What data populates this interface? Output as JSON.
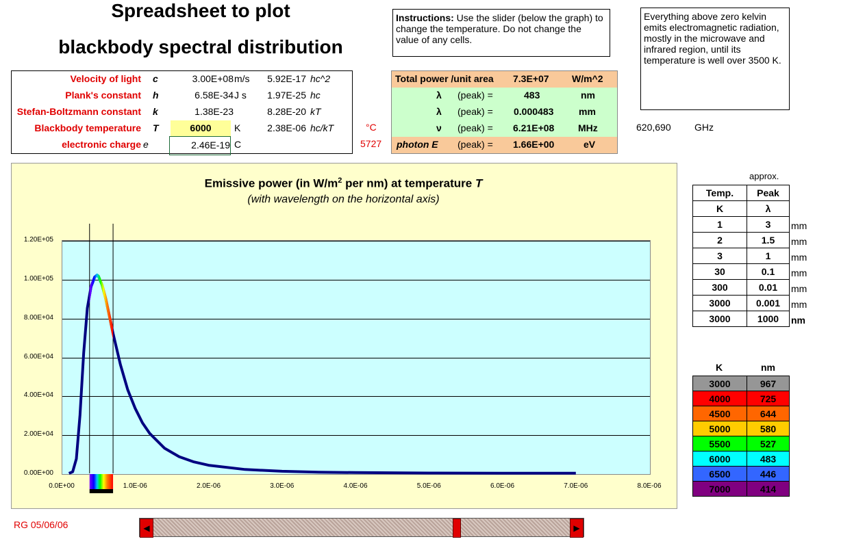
{
  "title_line1": "Spreadsheet to plot",
  "title_line2": "blackbody spectral distribution",
  "instructions_label": "Instructions:",
  "instructions_text": " Use the slider (below the graph) to change the temperature. Do not change the value of any cells.",
  "info_text": "Everything above zero kelvin emits electromagnetic radiation, mostly in the microwave and infrared region, until its temperature is well over 3500 K.",
  "constants": [
    {
      "label": "Velocity of light",
      "symbol": "c",
      "value": "3.00E+08",
      "unit": "m/s",
      "value2": "5.92E-17",
      "expr": "hc^2"
    },
    {
      "label": "Plank's constant",
      "symbol": "h",
      "value": "6.58E-34",
      "unit": "J s",
      "value2": "1.97E-25",
      "expr": "hc"
    },
    {
      "label": "Stefan-Boltzmann constant",
      "symbol": "k",
      "value": "1.38E-23",
      "unit": "",
      "value2": "8.28E-20",
      "expr": "kT"
    },
    {
      "label": "Blackbody temperature",
      "symbol": "T",
      "value": "6000",
      "unit": "K",
      "value2": "2.38E-06",
      "expr": "hc/kT"
    },
    {
      "label": "electronic charge",
      "symbol": "e",
      "value": "2.46E-19",
      "unit": "C",
      "value2": "",
      "expr": ""
    }
  ],
  "celsius_unit": "°C",
  "celsius_value": "5727",
  "results": {
    "total_power_label": "Total power /unit area",
    "total_power_value": "7.3E+07",
    "total_power_unit": "W/m^2",
    "peak_word": "(peak)  =",
    "lambda_symbol": "λ",
    "nu_symbol": "ν",
    "lambda_nm_value": "483",
    "lambda_nm_unit": "nm",
    "lambda_mm_value": "0.000483",
    "lambda_mm_unit": "mm",
    "nu_value": "6.21E+08",
    "nu_unit": "MHz",
    "photon_label": "photon E",
    "photon_value": "1.66E+00",
    "photon_unit": "eV"
  },
  "ghz_value": "620,690",
  "ghz_unit": "GHz",
  "chart_data": {
    "type": "line",
    "title": "Emissive power (in W/m",
    "title_sup": "2",
    "title_rest": " per nm) at temperature ",
    "title_T": "T",
    "subtitle": "(with wavelength on the horizontal axis)",
    "ylim": [
      0,
      120000
    ],
    "xlim": [
      0,
      8e-06
    ],
    "yticks": [
      "0.00E+00",
      "2.00E+04",
      "4.00E+04",
      "6.00E+04",
      "8.00E+04",
      "1.00E+05",
      "1.20E+05"
    ],
    "xticks": [
      "0.0E+00",
      "1.0E-06",
      "2.0E-06",
      "3.0E-06",
      "4.0E-06",
      "5.0E-06",
      "6.0E-06",
      "7.0E-06",
      "8.0E-06"
    ],
    "grid": true,
    "series_color": "#000080",
    "visible_band_nm": [
      380,
      700
    ],
    "x": [
      1e-07,
      1.5e-07,
      2e-07,
      2.5e-07,
      3e-07,
      3.5e-07,
      4e-07,
      4.5e-07,
      4.83e-07,
      5e-07,
      5.5e-07,
      6e-07,
      6.5e-07,
      7e-07,
      8e-07,
      9e-07,
      1e-06,
      1.1e-06,
      1.2e-06,
      1.4e-06,
      1.6e-06,
      1.8e-06,
      2e-06,
      2.5e-06,
      3e-06,
      3.5e-06,
      4e-06,
      5e-06,
      6e-06,
      7e-06
    ],
    "values": [
      0,
      800,
      7500,
      30000,
      62000,
      85000,
      96000,
      101000,
      102000,
      101500,
      97000,
      90000,
      81000,
      72000,
      56000,
      43000,
      33500,
      26000,
      20500,
      13000,
      8600,
      5900,
      4200,
      2000,
      1100,
      650,
      420,
      190,
      100,
      60
    ]
  },
  "approx_label": "approx.",
  "peak_table": {
    "header1": [
      "Temp.",
      "Peak"
    ],
    "header2": [
      "K",
      "λ"
    ],
    "rows": [
      {
        "temp": "1",
        "peak": "3",
        "unit": "mm"
      },
      {
        "temp": "2",
        "peak": "1.5",
        "unit": "mm"
      },
      {
        "temp": "3",
        "peak": "1",
        "unit": "mm"
      },
      {
        "temp": "30",
        "peak": "0.1",
        "unit": "mm"
      },
      {
        "temp": "300",
        "peak": "0.01",
        "unit": "mm"
      },
      {
        "temp": "3000",
        "peak": "0.001",
        "unit": "mm"
      },
      {
        "temp": "3000",
        "peak": "1000",
        "unit": "nm"
      }
    ]
  },
  "color_table": {
    "header": [
      "K",
      "nm"
    ],
    "rows": [
      {
        "k": "3000",
        "nm": "967",
        "color": "#969696"
      },
      {
        "k": "4000",
        "nm": "725",
        "color": "#ff0000"
      },
      {
        "k": "4500",
        "nm": "644",
        "color": "#ff6600"
      },
      {
        "k": "5000",
        "nm": "580",
        "color": "#ffcc00"
      },
      {
        "k": "5500",
        "nm": "527",
        "color": "#00ff00"
      },
      {
        "k": "6000",
        "nm": "483",
        "color": "#00ffff"
      },
      {
        "k": "6500",
        "nm": "446",
        "color": "#3366ff"
      },
      {
        "k": "7000",
        "nm": "414",
        "color": "#800080"
      }
    ]
  },
  "footer": "RG 05/06/06",
  "slider": {
    "value_fraction": 0.73,
    "left_arrow": "◀",
    "right_arrow": "▶"
  }
}
